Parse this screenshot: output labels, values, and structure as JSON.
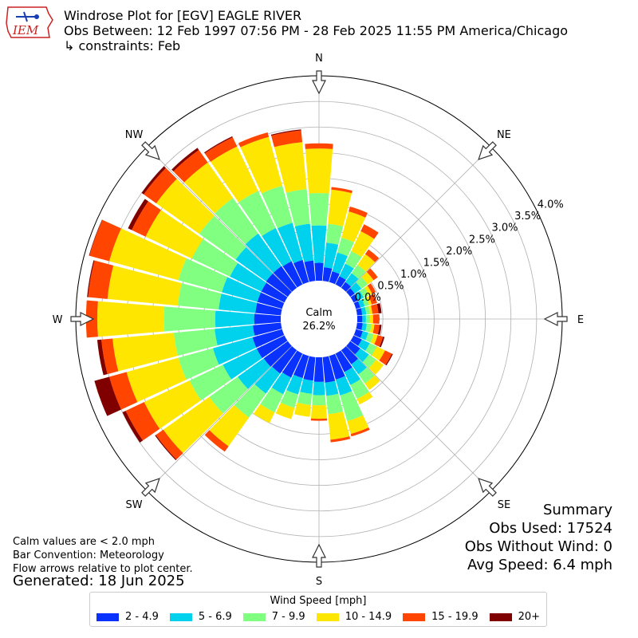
{
  "logo": {
    "text": "IEM"
  },
  "header": {
    "title": "Windrose Plot for [EGV] EAGLE RIVER",
    "subtitle": "Obs Between: 12 Feb 1997 07:56 PM - 28 Feb 2025 11:55 PM America/Chicago",
    "constraints": "↳ constraints: Feb"
  },
  "notes": {
    "line1": "Calm values are < 2.0 mph",
    "line2": "Bar Convention: Meteorology",
    "line3": "Flow arrows relative to plot center.",
    "generated": "Generated: 18 Jun 2025"
  },
  "summary": {
    "title": "Summary",
    "obs_used": "Obs Used: 17524",
    "obs_without_wind": "Obs Without Wind: 0",
    "avg_speed": "Avg Speed: 6.4 mph"
  },
  "chart_data": {
    "type": "windrose",
    "calm_label": "Calm",
    "calm_value": "26.2%",
    "direction_labels": [
      "N",
      "NE",
      "E",
      "SE",
      "S",
      "SW",
      "W",
      "NW"
    ],
    "radial_ticks": [
      "0.0%",
      "0.5%",
      "1.0%",
      "1.5%",
      "2.0%",
      "2.5%",
      "3.0%",
      "3.5%",
      "4.0%"
    ],
    "radial_max": 4.0,
    "legend_title": "Wind Speed [mph]",
    "speed_bins": [
      "2 - 4.9",
      "5 - 6.9",
      "7 - 9.9",
      "10 - 14.9",
      "15 - 19.9",
      "20+"
    ],
    "colors": [
      "#0a32ff",
      "#00d2ee",
      "#80ff80",
      "#ffe600",
      "#ff4500",
      "#800000"
    ],
    "directions_deg": [
      0,
      10,
      20,
      30,
      40,
      50,
      60,
      70,
      80,
      90,
      100,
      110,
      120,
      130,
      140,
      150,
      160,
      170,
      180,
      190,
      200,
      210,
      220,
      230,
      240,
      250,
      260,
      270,
      280,
      290,
      300,
      310,
      320,
      330,
      340,
      350
    ],
    "cumulative_pct": [
      [
        0.35,
        1.08,
        1.71,
        2.58,
        2.68,
        2.68
      ],
      [
        0.27,
        0.75,
        1.12,
        1.79,
        1.84,
        1.84
      ],
      [
        0.22,
        0.6,
        0.9,
        1.43,
        1.53,
        1.53
      ],
      [
        0.18,
        0.45,
        0.72,
        1.15,
        1.3,
        1.3
      ],
      [
        0.14,
        0.35,
        0.55,
        0.81,
        0.92,
        0.92
      ],
      [
        0.11,
        0.27,
        0.42,
        0.56,
        0.66,
        0.66
      ],
      [
        0.1,
        0.22,
        0.33,
        0.4,
        0.48,
        0.48
      ],
      [
        0.09,
        0.18,
        0.27,
        0.32,
        0.43,
        0.43
      ],
      [
        0.1,
        0.18,
        0.25,
        0.3,
        0.42,
        0.48
      ],
      [
        0.1,
        0.17,
        0.25,
        0.31,
        0.42,
        0.43
      ],
      [
        0.11,
        0.19,
        0.28,
        0.34,
        0.44,
        0.48
      ],
      [
        0.14,
        0.25,
        0.36,
        0.44,
        0.55,
        0.58
      ],
      [
        0.18,
        0.35,
        0.5,
        0.68,
        0.83,
        0.85
      ],
      [
        0.24,
        0.45,
        0.62,
        0.8,
        0.8,
        0.8
      ],
      [
        0.34,
        0.58,
        0.8,
        0.95,
        0.95,
        0.95
      ],
      [
        0.4,
        0.68,
        0.98,
        1.1,
        1.1,
        1.1
      ],
      [
        0.48,
        0.8,
        1.32,
        1.58,
        1.63,
        1.63
      ],
      [
        0.5,
        0.76,
        1.12,
        1.62,
        1.67,
        1.67
      ],
      [
        0.48,
        0.74,
        0.94,
        1.2,
        1.24,
        1.24
      ],
      [
        0.46,
        0.72,
        0.94,
        1.17,
        1.17,
        1.17
      ],
      [
        0.45,
        0.78,
        1.05,
        1.28,
        1.28,
        1.28
      ],
      [
        0.52,
        0.88,
        1.27,
        1.5,
        1.5,
        1.5
      ],
      [
        0.56,
        1.04,
        1.61,
        2.3,
        2.43,
        2.43
      ],
      [
        0.58,
        1.2,
        1.88,
        2.98,
        3.16,
        3.18
      ],
      [
        0.6,
        1.33,
        2.05,
        3.03,
        3.43,
        3.5
      ],
      [
        0.6,
        1.4,
        2.1,
        3.15,
        3.5,
        3.8
      ],
      [
        0.55,
        1.3,
        2.1,
        3.3,
        3.52,
        3.6
      ],
      [
        0.52,
        1.28,
        2.28,
        3.58,
        3.8,
        3.8
      ],
      [
        0.5,
        1.22,
        2.02,
        3.4,
        3.78,
        3.8
      ],
      [
        0.5,
        1.22,
        2.1,
        3.5,
        3.9,
        3.91
      ],
      [
        0.5,
        1.18,
        2.0,
        3.0,
        3.3,
        3.38
      ],
      [
        0.52,
        1.25,
        2.12,
        3.15,
        3.45,
        3.5
      ],
      [
        0.52,
        1.3,
        2.15,
        3.0,
        3.3,
        3.35
      ],
      [
        0.5,
        1.22,
        2.02,
        2.98,
        3.18,
        3.2
      ],
      [
        0.45,
        1.2,
        1.95,
        2.94,
        3.03,
        3.03
      ],
      [
        0.4,
        1.12,
        1.8,
        2.72,
        2.95,
        2.97
      ]
    ]
  }
}
